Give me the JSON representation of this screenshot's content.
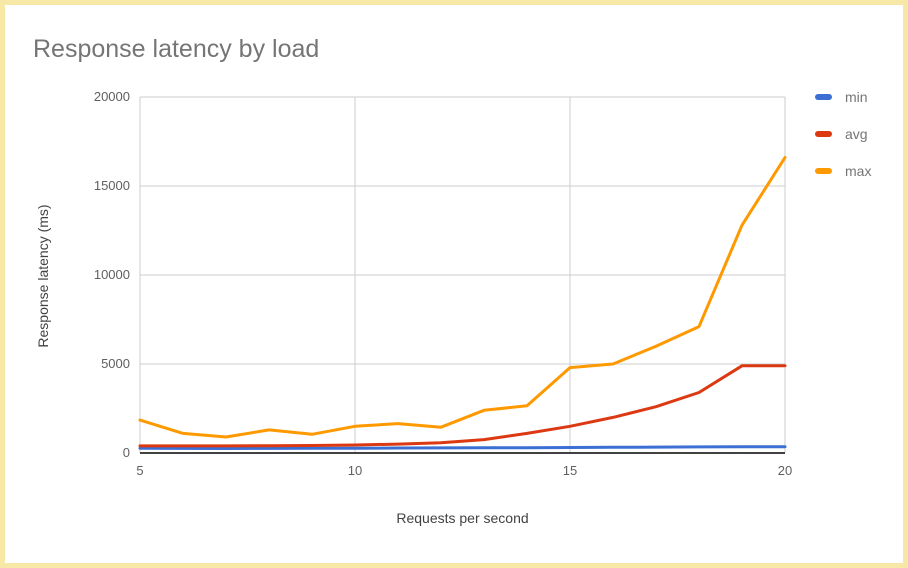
{
  "title": "Response latency by load",
  "frame": {
    "border_color": "#f8e8a8",
    "background": "#ffffff"
  },
  "chart_data": {
    "type": "line",
    "title": "Response latency by load",
    "xlabel": "Requests per second",
    "ylabel": "Response latency (ms)",
    "xlim": [
      5,
      20
    ],
    "ylim": [
      0,
      20000
    ],
    "xticks": [
      5,
      10,
      15,
      20
    ],
    "yticks": [
      0,
      5000,
      10000,
      15000,
      20000
    ],
    "grid": true,
    "legend_position": "right",
    "x": [
      5,
      6,
      7,
      8,
      9,
      10,
      11,
      12,
      13,
      14,
      15,
      16,
      17,
      18,
      19,
      20
    ],
    "series": [
      {
        "name": "min",
        "color": "#3b6fd4",
        "values": [
          270,
          260,
          255,
          260,
          265,
          270,
          280,
          285,
          290,
          300,
          310,
          320,
          330,
          340,
          350,
          350
        ]
      },
      {
        "name": "avg",
        "color": "#dc3912",
        "values": [
          400,
          400,
          400,
          410,
          420,
          450,
          500,
          580,
          750,
          1100,
          1500,
          2000,
          2600,
          3400,
          4900,
          4900
        ]
      },
      {
        "name": "max",
        "color": "#ff9900",
        "values": [
          1850,
          1100,
          900,
          1300,
          1050,
          1500,
          1650,
          1450,
          2400,
          2650,
          4800,
          5000,
          6000,
          7100,
          12800,
          16600
        ]
      }
    ],
    "axis_colors": {
      "gridline": "#cccccc",
      "baseline": "#424242",
      "tick_text": "#5f5f5f",
      "axis_title_text": "#424242",
      "chart_title_text": "#757575"
    }
  }
}
